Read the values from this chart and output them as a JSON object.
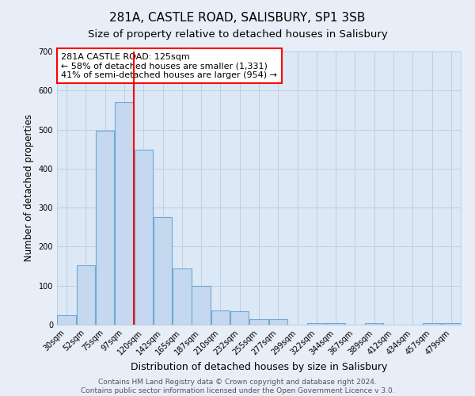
{
  "title": "281A, CASTLE ROAD, SALISBURY, SP1 3SB",
  "subtitle": "Size of property relative to detached houses in Salisbury",
  "xlabel": "Distribution of detached houses by size in Salisbury",
  "ylabel": "Number of detached properties",
  "bar_labels": [
    "30sqm",
    "52sqm",
    "75sqm",
    "97sqm",
    "120sqm",
    "142sqm",
    "165sqm",
    "187sqm",
    "210sqm",
    "232sqm",
    "255sqm",
    "277sqm",
    "299sqm",
    "322sqm",
    "344sqm",
    "367sqm",
    "389sqm",
    "412sqm",
    "434sqm",
    "457sqm",
    "479sqm"
  ],
  "bar_values": [
    25,
    153,
    497,
    570,
    448,
    275,
    144,
    100,
    36,
    35,
    14,
    14,
    0,
    5,
    5,
    0,
    5,
    0,
    0,
    5,
    5
  ],
  "bar_color": "#c5d8f0",
  "bar_edge_color": "#6aaad4",
  "vline_x": 3.5,
  "vline_color": "red",
  "annotation_title": "281A CASTLE ROAD: 125sqm",
  "annotation_line1": "← 58% of detached houses are smaller (1,331)",
  "annotation_line2": "41% of semi-detached houses are larger (954) →",
  "annotation_box_color": "white",
  "annotation_box_edge_color": "red",
  "ylim": [
    0,
    700
  ],
  "yticks": [
    0,
    100,
    200,
    300,
    400,
    500,
    600,
    700
  ],
  "footer1": "Contains HM Land Registry data © Crown copyright and database right 2024.",
  "footer2": "Contains public sector information licensed under the Open Government Licence v 3.0.",
  "bg_color": "#e8eef8",
  "plot_bg_color": "#dce8f5",
  "grid_color": "#b8ccdf",
  "title_fontsize": 11,
  "subtitle_fontsize": 9.5,
  "xlabel_fontsize": 9,
  "ylabel_fontsize": 8.5,
  "tick_fontsize": 7,
  "annotation_fontsize": 8,
  "footer_fontsize": 6.5
}
